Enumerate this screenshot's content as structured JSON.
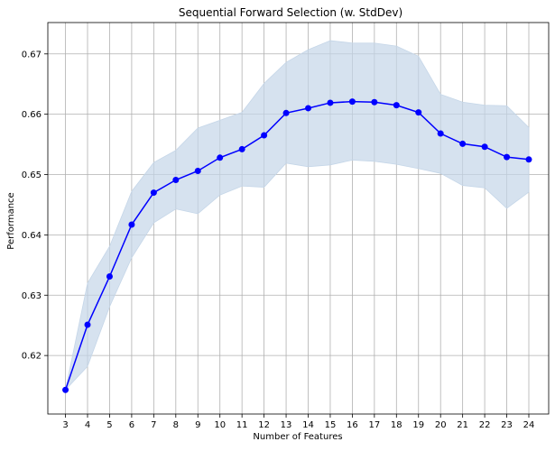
{
  "chart_data": {
    "type": "line",
    "title": "Sequential Forward Selection (w. StdDev)",
    "xlabel": "Number of Features",
    "ylabel": "Performance",
    "x": [
      3,
      4,
      5,
      6,
      7,
      8,
      9,
      10,
      11,
      12,
      13,
      14,
      15,
      16,
      17,
      18,
      19,
      20,
      21,
      22,
      23,
      24
    ],
    "series": [
      {
        "values": [
          0.6143,
          0.6251,
          0.6331,
          0.6417,
          0.647,
          0.6491,
          0.6506,
          0.6528,
          0.6542,
          0.6565,
          0.6602,
          0.661,
          0.6619,
          0.6621,
          0.662,
          0.6615,
          0.6603,
          0.6568,
          0.6551,
          0.6546,
          0.6529,
          0.6525
        ],
        "upper": [
          0.6143,
          0.632,
          0.6381,
          0.6472,
          0.652,
          0.654,
          0.6577,
          0.659,
          0.6603,
          0.6651,
          0.6686,
          0.6707,
          0.6722,
          0.6718,
          0.6718,
          0.6713,
          0.6696,
          0.6633,
          0.662,
          0.6615,
          0.6614,
          0.6578
        ],
        "lower": [
          0.6143,
          0.6182,
          0.6281,
          0.6362,
          0.642,
          0.6443,
          0.6435,
          0.6466,
          0.6481,
          0.6479,
          0.6519,
          0.6513,
          0.6516,
          0.6524,
          0.6522,
          0.6517,
          0.651,
          0.6502,
          0.6482,
          0.6478,
          0.6444,
          0.6471
        ]
      }
    ],
    "xlim": [
      2.2,
      24.9
    ],
    "ylim": [
      0.6103,
      0.6752
    ],
    "yticks": [
      0.62,
      0.63,
      0.64,
      0.65,
      0.66,
      0.67
    ],
    "ytick_labels": [
      "0.62",
      "0.63",
      "0.64",
      "0.65",
      "0.66",
      "0.67"
    ],
    "xtick_labels": [
      "3",
      "4",
      "5",
      "6",
      "7",
      "8",
      "9",
      "10",
      "11",
      "12",
      "13",
      "14",
      "15",
      "16",
      "17",
      "18",
      "19",
      "20",
      "21",
      "22",
      "23",
      "24"
    ],
    "grid": true,
    "colors": {
      "line": "#0000ff",
      "band": "#c5d6e8",
      "grid": "#b0b0b0"
    }
  }
}
